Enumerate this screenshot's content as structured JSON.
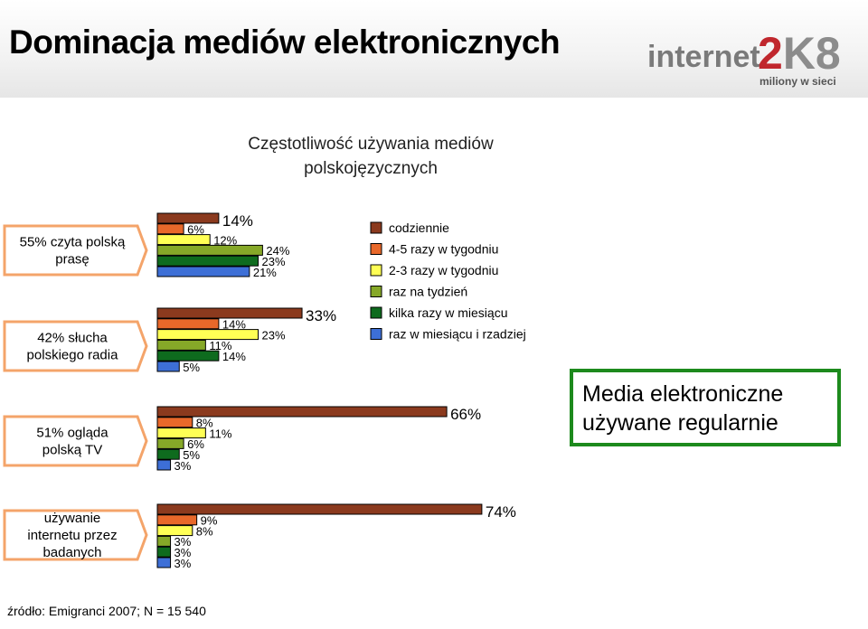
{
  "header": {
    "title": "Dominacja mediów elektronicznych"
  },
  "logo": {
    "word": "internet",
    "num_red": "2",
    "num_rest": "K8",
    "tagline": "miliony w sieci"
  },
  "chart_data": {
    "type": "bar",
    "orientation": "horizontal",
    "title_lines": [
      "Częstotliwość używania mediów",
      "polskojęzycznych"
    ],
    "series": [
      {
        "name": "codziennie",
        "color": "#8B3A1E"
      },
      {
        "name": "4-5 razy w tygodniu",
        "color": "#E8682A"
      },
      {
        "name": "2-3 razy w tygodniu",
        "color": "#FFFF55"
      },
      {
        "name": "raz na tydzień",
        "color": "#86A828"
      },
      {
        "name": "kilka razy w miesiącu",
        "color": "#0E6B1E"
      },
      {
        "name": "raz w miesiącu i rzadziej",
        "color": "#3D6FD6"
      }
    ],
    "groups": [
      {
        "label_lines": [
          "55% czyta polską",
          "prasę"
        ],
        "values": [
          14,
          6,
          12,
          24,
          23,
          21
        ],
        "value_labels": [
          "14%",
          "6%",
          "12%",
          "24%",
          "23%",
          "21%"
        ]
      },
      {
        "label_lines": [
          "42% słucha",
          "polskiego radia"
        ],
        "values": [
          33,
          14,
          23,
          11,
          14,
          5
        ],
        "value_labels": [
          "33%",
          "14%",
          "23%",
          "11%",
          "14%",
          "5%"
        ]
      },
      {
        "label_lines": [
          "51% ogląda",
          "polską TV"
        ],
        "values": [
          66,
          8,
          11,
          6,
          5,
          3
        ],
        "value_labels": [
          "66%",
          "8%",
          "11%",
          "6%",
          "5%",
          "3%"
        ]
      },
      {
        "label_lines": [
          "używanie",
          "internetu przez",
          "badanych"
        ],
        "values": [
          74,
          9,
          8,
          3,
          3,
          3
        ],
        "value_labels": [
          "74%",
          "9%",
          "8%",
          "3%",
          "3%",
          "3%"
        ]
      }
    ],
    "annotation_lines": [
      "Media  elektroniczne",
      "używane regularnie"
    ],
    "legend_position": "right",
    "grid": false
  },
  "footer": {
    "source": "źródło: Emigranci 2007; N = 15 540"
  }
}
